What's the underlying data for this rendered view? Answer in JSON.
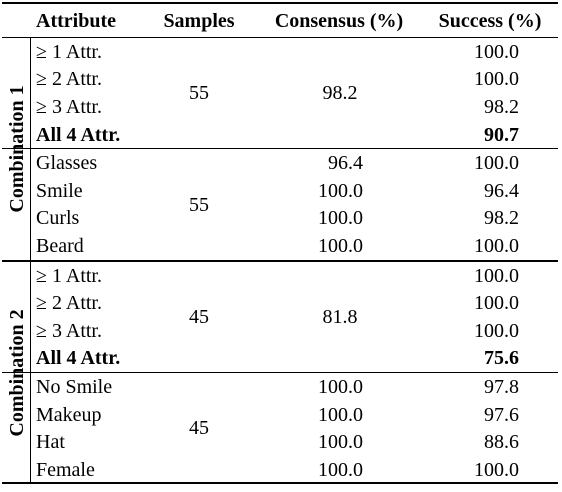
{
  "header": [
    "Attribute",
    "Samples",
    "Consensus (%)",
    "Success (%)"
  ],
  "groups": [
    {
      "label": "Combination 1",
      "blocks": [
        {
          "samples": "55",
          "consensus": "98.2",
          "rows": [
            {
              "attribute": "≥ 1 Attr.",
              "success": "100.0"
            },
            {
              "attribute": "≥ 2 Attr.",
              "success": "100.0"
            },
            {
              "attribute": "≥ 3 Attr.",
              "success": "98.2"
            },
            {
              "attribute": "All 4 Attr.",
              "success": "90.7",
              "bold": true
            }
          ]
        },
        {
          "samples": "55",
          "rows": [
            {
              "attribute": "Glasses",
              "consensus": "96.4",
              "success": "100.0"
            },
            {
              "attribute": "Smile",
              "consensus": "100.0",
              "success": "96.4"
            },
            {
              "attribute": "Curls",
              "consensus": "100.0",
              "success": "98.2"
            },
            {
              "attribute": "Beard",
              "consensus": "100.0",
              "success": "100.0"
            }
          ]
        }
      ]
    },
    {
      "label": "Combination 2",
      "blocks": [
        {
          "samples": "45",
          "consensus": "81.8",
          "rows": [
            {
              "attribute": "≥ 1 Attr.",
              "success": "100.0"
            },
            {
              "attribute": "≥ 2 Attr.",
              "success": "100.0"
            },
            {
              "attribute": "≥ 3 Attr.",
              "success": "100.0"
            },
            {
              "attribute": "All 4 Attr.",
              "success": "75.6",
              "bold": true
            }
          ]
        },
        {
          "samples": "45",
          "rows": [
            {
              "attribute": "No Smile",
              "consensus": "100.0",
              "success": "97.8"
            },
            {
              "attribute": "Makeup",
              "consensus": "100.0",
              "success": "97.6"
            },
            {
              "attribute": "Hat",
              "consensus": "100.0",
              "success": "88.6"
            },
            {
              "attribute": "Female",
              "consensus": "100.0",
              "success": "100.0"
            }
          ]
        }
      ]
    }
  ]
}
